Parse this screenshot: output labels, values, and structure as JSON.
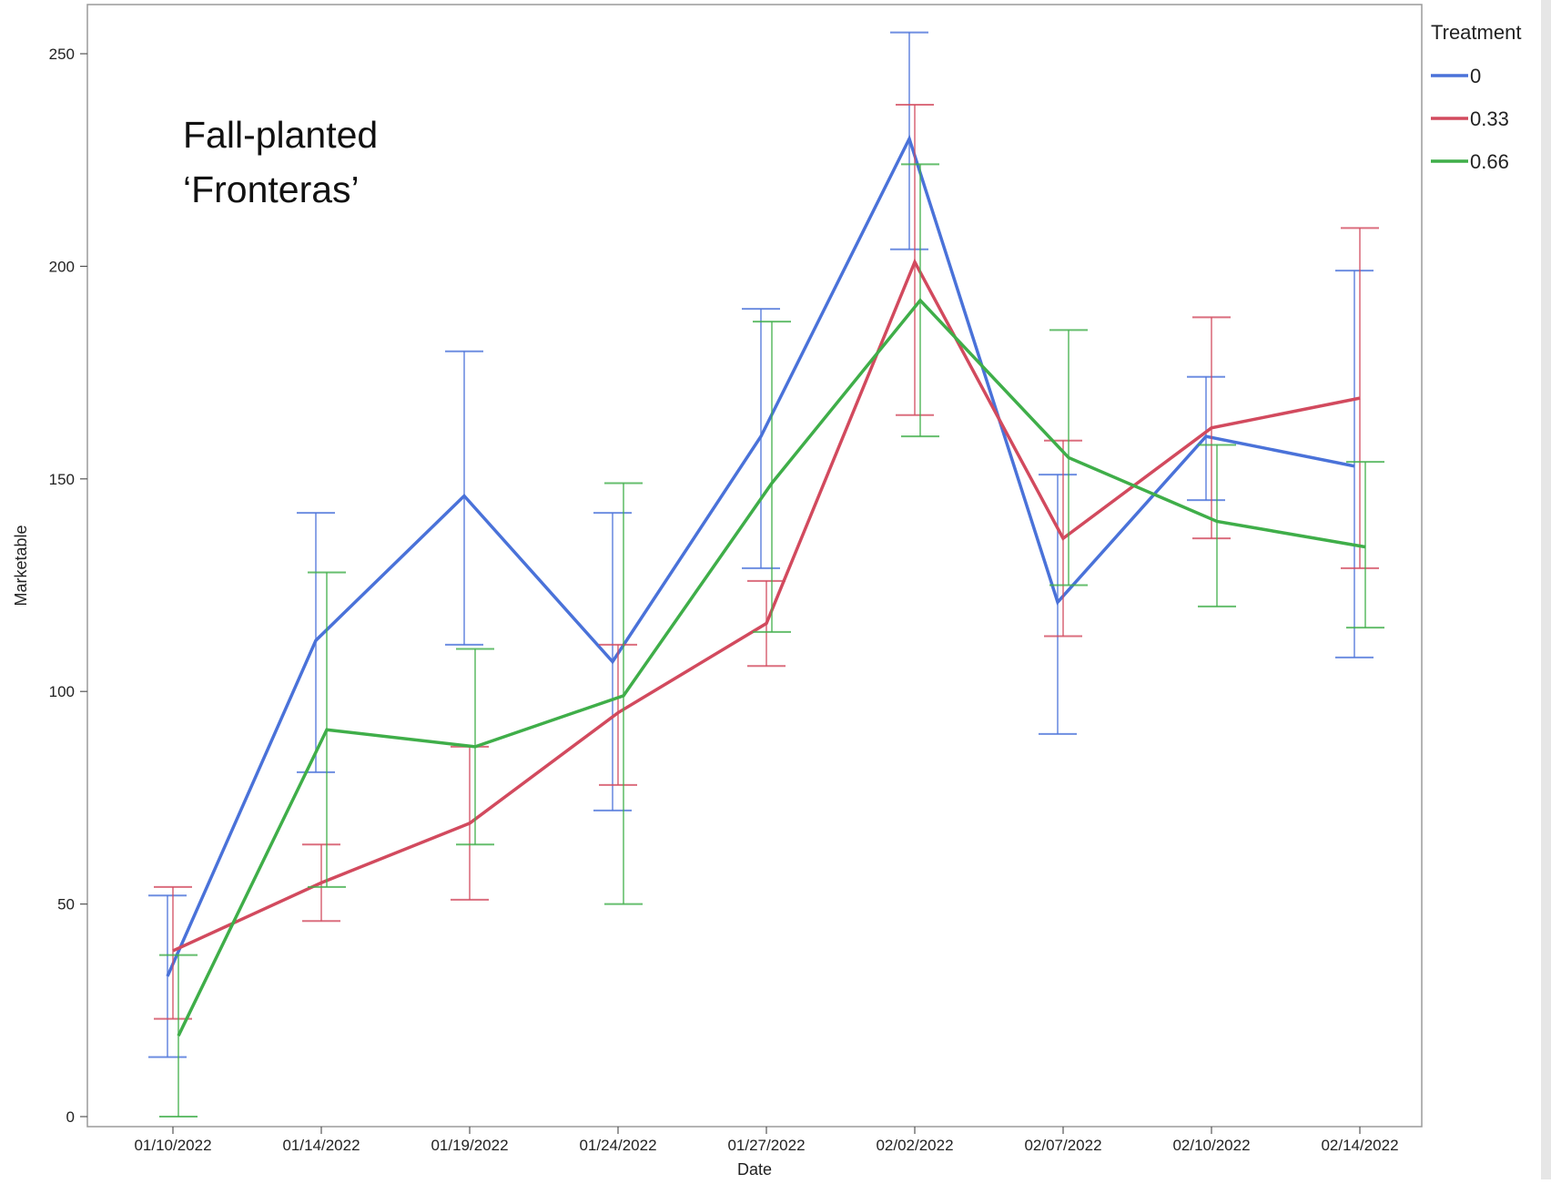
{
  "chart_data": {
    "type": "line",
    "title": "",
    "xlabel": "Date",
    "ylabel": "Marketable",
    "ylim": [
      0,
      255
    ],
    "yticks": [
      0,
      50,
      100,
      150,
      200,
      250
    ],
    "categories": [
      "01/10/2022",
      "01/14/2022",
      "01/19/2022",
      "01/24/2022",
      "01/27/2022",
      "02/02/2022",
      "02/07/2022",
      "02/10/2022",
      "02/14/2022"
    ],
    "annotation": [
      "Fall-planted",
      "‘Fronteras’"
    ],
    "legend": {
      "title": "Treatment",
      "position": "top-right"
    },
    "error_bars": true,
    "grid": false,
    "series": [
      {
        "name": "0",
        "color": "#4a72d9",
        "values": [
          33,
          112,
          146,
          107,
          160,
          230,
          121,
          160,
          153
        ],
        "lower": [
          14,
          81,
          111,
          72,
          129,
          204,
          90,
          145,
          108
        ],
        "upper": [
          52,
          142,
          180,
          142,
          190,
          255,
          151,
          174,
          199
        ]
      },
      {
        "name": "0.33",
        "color": "#d24a5e",
        "values": [
          39,
          55,
          69,
          95,
          116,
          201,
          136,
          162,
          169
        ],
        "lower": [
          23,
          46,
          51,
          78,
          106,
          165,
          113,
          136,
          129
        ],
        "upper": [
          54,
          64,
          87,
          111,
          126,
          238,
          159,
          188,
          209
        ]
      },
      {
        "name": "0.66",
        "color": "#3fae49",
        "values": [
          19,
          91,
          87,
          99,
          149,
          192,
          155,
          140,
          134
        ],
        "lower": [
          0,
          54,
          64,
          50,
          114,
          160,
          125,
          120,
          115
        ],
        "upper": [
          38,
          128,
          110,
          149,
          187,
          224,
          185,
          158,
          154
        ]
      }
    ]
  }
}
